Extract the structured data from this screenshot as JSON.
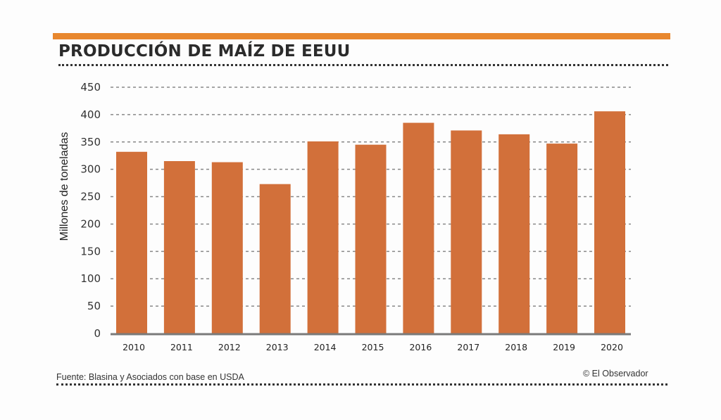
{
  "colors": {
    "accent": "#e8872e",
    "bar": "#d2703a",
    "grid": "#888888",
    "axis": "#7a7a7a",
    "text": "#2b2b2b"
  },
  "footer": {
    "source": "Fuente: Blasina y Asociados con base en USDA",
    "credit": "© El Observador"
  },
  "chart_data": {
    "type": "bar",
    "title": "PRODUCCIÓN DE MAÍZ DE EEUU",
    "xlabel": "",
    "ylabel": "Millones de toneladas",
    "categories": [
      "2010",
      "2011",
      "2012",
      "2013",
      "2014",
      "2015",
      "2016",
      "2017",
      "2018",
      "2019",
      "2020"
    ],
    "values": [
      332,
      315,
      313,
      273,
      351,
      345,
      385,
      371,
      364,
      347,
      406
    ],
    "ylim": [
      0,
      450
    ],
    "yticks": [
      0,
      50,
      100,
      150,
      200,
      250,
      300,
      350,
      400,
      450
    ],
    "grid": true,
    "legend": "none"
  }
}
